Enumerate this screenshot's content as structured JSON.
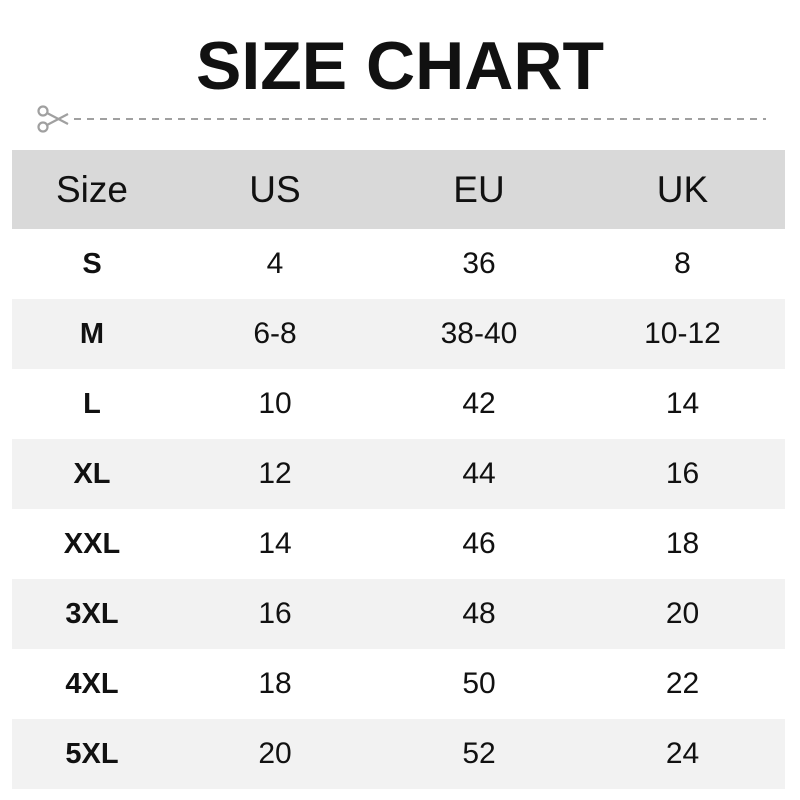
{
  "title": "SIZE CHART",
  "colors": {
    "header_bg": "#d9d9d9",
    "alt_row_bg": "#f2f2f2",
    "cut_line": "#a0a0a0"
  },
  "icons": {
    "cut": "scissors-icon"
  },
  "table": {
    "headers": [
      "Size",
      "US",
      "EU",
      "UK"
    ],
    "rows": [
      [
        "S",
        "4",
        "36",
        "8"
      ],
      [
        "M",
        "6-8",
        "38-40",
        "10-12"
      ],
      [
        "L",
        "10",
        "42",
        "14"
      ],
      [
        "XL",
        "12",
        "44",
        "16"
      ],
      [
        "XXL",
        "14",
        "46",
        "18"
      ],
      [
        "3XL",
        "16",
        "48",
        "20"
      ],
      [
        "4XL",
        "18",
        "50",
        "22"
      ],
      [
        "5XL",
        "20",
        "52",
        "24"
      ]
    ]
  }
}
